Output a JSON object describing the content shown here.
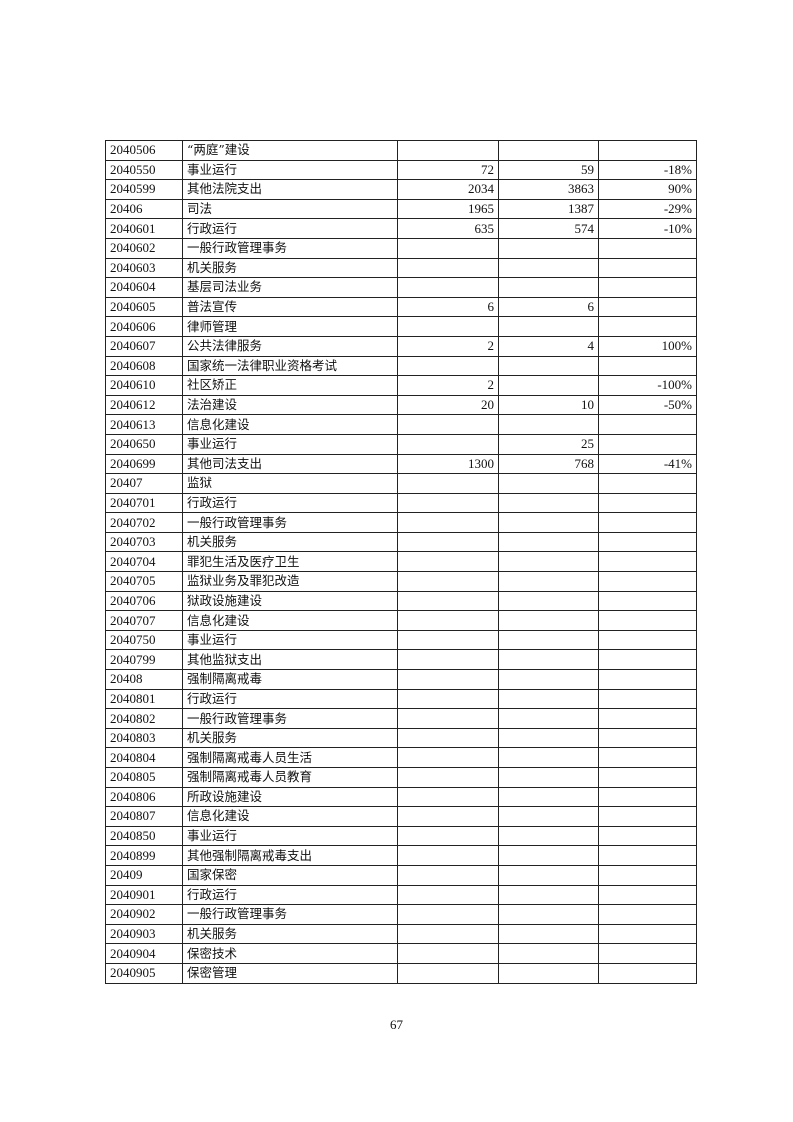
{
  "table": {
    "rows": [
      [
        "2040506",
        "“两庭”建设",
        "",
        "",
        ""
      ],
      [
        "2040550",
        "事业运行",
        "72",
        "59",
        "-18%"
      ],
      [
        "2040599",
        "其他法院支出",
        "2034",
        "3863",
        "90%"
      ],
      [
        "20406",
        "司法",
        "1965",
        "1387",
        "-29%"
      ],
      [
        "2040601",
        "行政运行",
        "635",
        "574",
        "-10%"
      ],
      [
        "2040602",
        "一般行政管理事务",
        "",
        "",
        ""
      ],
      [
        "2040603",
        "机关服务",
        "",
        "",
        ""
      ],
      [
        "2040604",
        "基层司法业务",
        "",
        "",
        ""
      ],
      [
        "2040605",
        "普法宣传",
        "6",
        "6",
        ""
      ],
      [
        "2040606",
        "律师管理",
        "",
        "",
        ""
      ],
      [
        "2040607",
        "公共法律服务",
        "2",
        "4",
        "100%"
      ],
      [
        "2040608",
        "国家统一法律职业资格考试",
        "",
        "",
        ""
      ],
      [
        "2040610",
        "社区矫正",
        "2",
        "",
        "-100%"
      ],
      [
        "2040612",
        "法治建设",
        "20",
        "10",
        "-50%"
      ],
      [
        "2040613",
        "信息化建设",
        "",
        "",
        ""
      ],
      [
        "2040650",
        "事业运行",
        "",
        "25",
        ""
      ],
      [
        "2040699",
        "其他司法支出",
        "1300",
        "768",
        "-41%"
      ],
      [
        "20407",
        "监狱",
        "",
        "",
        ""
      ],
      [
        "2040701",
        "行政运行",
        "",
        "",
        ""
      ],
      [
        "2040702",
        "一般行政管理事务",
        "",
        "",
        ""
      ],
      [
        "2040703",
        "机关服务",
        "",
        "",
        ""
      ],
      [
        "2040704",
        "罪犯生活及医疗卫生",
        "",
        "",
        ""
      ],
      [
        "2040705",
        "监狱业务及罪犯改造",
        "",
        "",
        ""
      ],
      [
        "2040706",
        "狱政设施建设",
        "",
        "",
        ""
      ],
      [
        "2040707",
        "信息化建设",
        "",
        "",
        ""
      ],
      [
        "2040750",
        "事业运行",
        "",
        "",
        ""
      ],
      [
        "2040799",
        "其他监狱支出",
        "",
        "",
        ""
      ],
      [
        "20408",
        "强制隔离戒毒",
        "",
        "",
        ""
      ],
      [
        "2040801",
        "行政运行",
        "",
        "",
        ""
      ],
      [
        "2040802",
        "一般行政管理事务",
        "",
        "",
        ""
      ],
      [
        "2040803",
        "机关服务",
        "",
        "",
        ""
      ],
      [
        "2040804",
        "强制隔离戒毒人员生活",
        "",
        "",
        ""
      ],
      [
        "2040805",
        "强制隔离戒毒人员教育",
        "",
        "",
        ""
      ],
      [
        "2040806",
        "所政设施建设",
        "",
        "",
        ""
      ],
      [
        "2040807",
        "信息化建设",
        "",
        "",
        ""
      ],
      [
        "2040850",
        "事业运行",
        "",
        "",
        ""
      ],
      [
        "2040899",
        "其他强制隔离戒毒支出",
        "",
        "",
        ""
      ],
      [
        "20409",
        "国家保密",
        "",
        "",
        ""
      ],
      [
        "2040901",
        "行政运行",
        "",
        "",
        ""
      ],
      [
        "2040902",
        "一般行政管理事务",
        "",
        "",
        ""
      ],
      [
        "2040903",
        "机关服务",
        "",
        "",
        ""
      ],
      [
        "2040904",
        "保密技术",
        "",
        "",
        ""
      ],
      [
        "2040905",
        "保密管理",
        "",
        "",
        ""
      ]
    ]
  },
  "page_number": "67"
}
